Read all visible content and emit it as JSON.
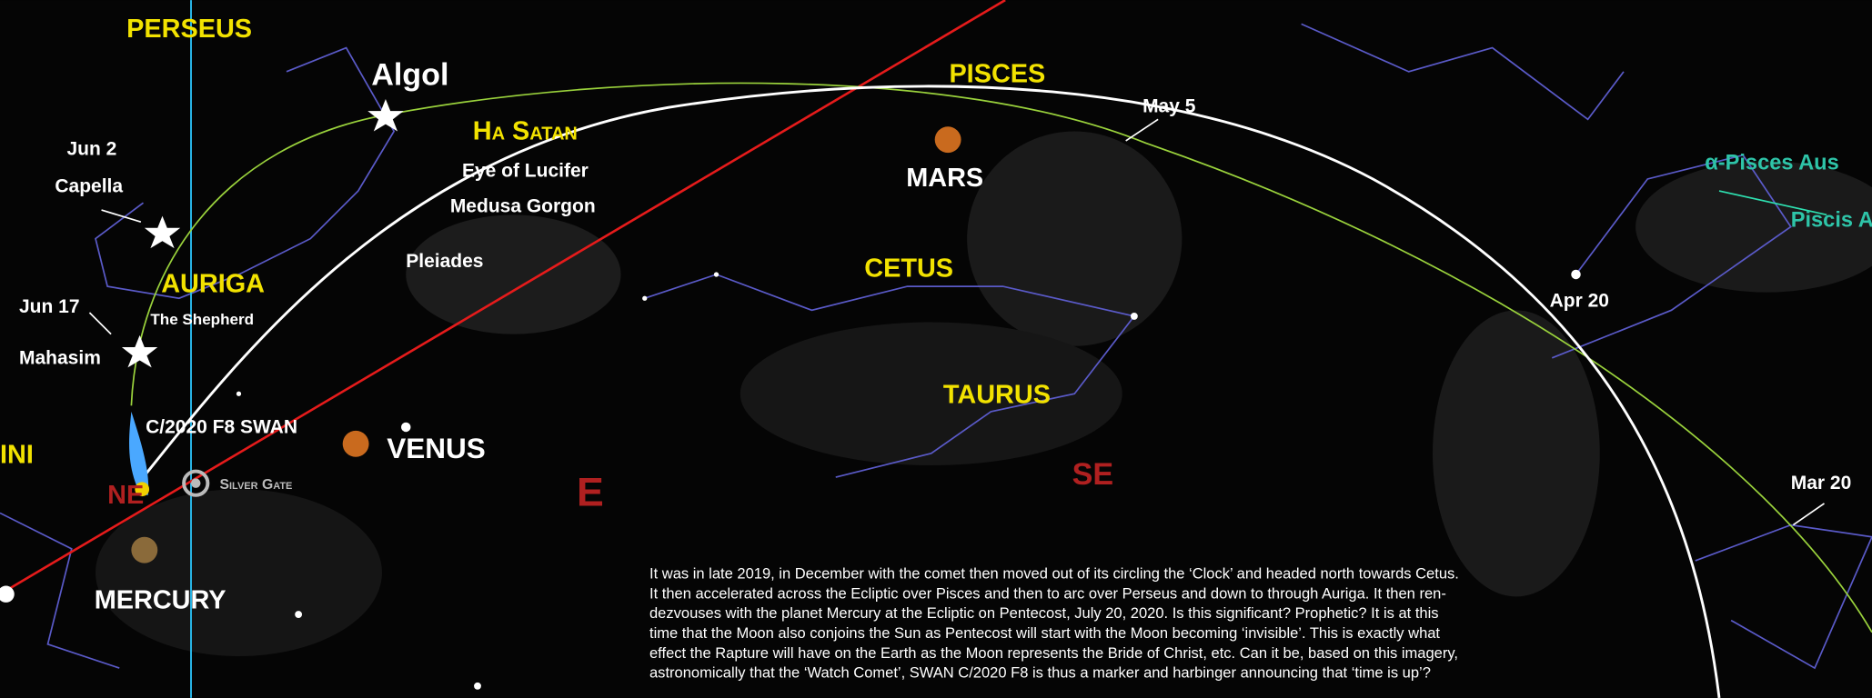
{
  "labels": {
    "perseus": "PERSEUS",
    "algol": "Algol",
    "ha_satan": "Ha Satan",
    "eye": "Eye of Lucifer",
    "medusa": "Medusa Gorgon",
    "pisces": "PISCES",
    "may5": "May 5",
    "mars": "MARS",
    "jun2": "Jun 2",
    "capella": "Capella",
    "auriga": "AURIGA",
    "shepherd": "The Shepherd",
    "pleiades": "Pleiades",
    "cetus": "CETUS",
    "jun17": "Jun 17",
    "mahasim": "Mahasim",
    "taurus": "TAURUS",
    "apr20": "Apr 20",
    "comet": "C/2020 F8 SWAN",
    "venus": "VENUS",
    "gemini": "INI",
    "ne": "NE",
    "silver_gate": "Silver Gate",
    "e": "E",
    "se": "SE",
    "mar20": "Mar 20",
    "mercury": "MERCURY",
    "apisces": "α-Pisces Aus",
    "piscis": "Piscis A"
  },
  "paragraph": [
    "It was in late 2019, in December with the comet then moved out of its circling the ‘Clock’ and headed north towards Cetus.",
    "It then accelerated across the Ecliptic over Pisces and then to arc over Perseus and down to through Auriga. It then ren-",
    "dezvouses with the planet Mercury at the Ecliptic on Pentecost, July 20, 2020. Is this significant? Prophetic? It is at this",
    "time that the Moon also conjoins the Sun as Pentecost will start with the Moon becoming ‘invisible’. This is exactly what",
    "effect the Rapture will have on the Earth as the Moon represents the Bride of Christ, etc. Can it be, based on this imagery,",
    "astronomically that the ‘Watch Comet’, SWAN C/2020 F8 is thus a marker and harbinger announcing that ‘time is up’?"
  ]
}
